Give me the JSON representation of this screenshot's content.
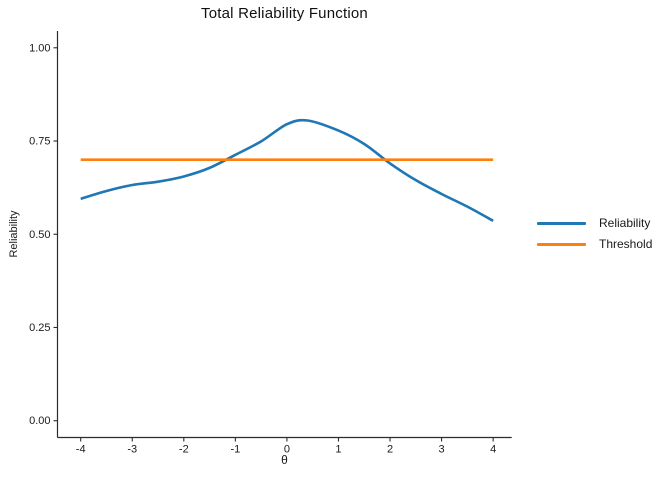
{
  "chart_data": {
    "type": "line",
    "title": "Total Reliability Function",
    "xlabel": "θ",
    "ylabel": "Reliability",
    "xlim": [
      -4.45,
      4.36
    ],
    "ylim": [
      -0.045,
      1.045
    ],
    "grid": false,
    "legend_position": "right-center",
    "axis_color": "#2b2b2b",
    "tick_label_color": "#1a1a1a",
    "xticks": {
      "values": [
        -4,
        -3,
        -2,
        -1,
        0,
        1,
        2,
        3,
        4
      ],
      "labels": [
        "-4",
        "-3",
        "-2",
        "-1",
        "0",
        "1",
        "2",
        "3",
        "4"
      ]
    },
    "yticks": {
      "values": [
        0,
        0.25,
        0.5,
        0.75,
        1.0
      ],
      "labels": [
        "0.00",
        "0.25",
        "0.50",
        "0.75",
        "1.00"
      ]
    },
    "series": [
      {
        "name": "Reliability",
        "color": "#1f77b4",
        "style": "smooth",
        "x": [
          -4,
          -3.5,
          -3,
          -2.5,
          -2,
          -1.5,
          -1,
          -0.5,
          0,
          0.4,
          1,
          1.5,
          2,
          2.5,
          3,
          3.5,
          4
        ],
        "y": [
          0.595,
          0.616,
          0.632,
          0.641,
          0.655,
          0.678,
          0.713,
          0.749,
          0.795,
          0.805,
          0.778,
          0.742,
          0.69,
          0.645,
          0.608,
          0.574,
          0.536
        ]
      },
      {
        "name": "Threshold",
        "color": "#ff7f0e",
        "style": "straight",
        "x": [
          -4,
          4
        ],
        "y": [
          0.7,
          0.7
        ]
      }
    ]
  }
}
